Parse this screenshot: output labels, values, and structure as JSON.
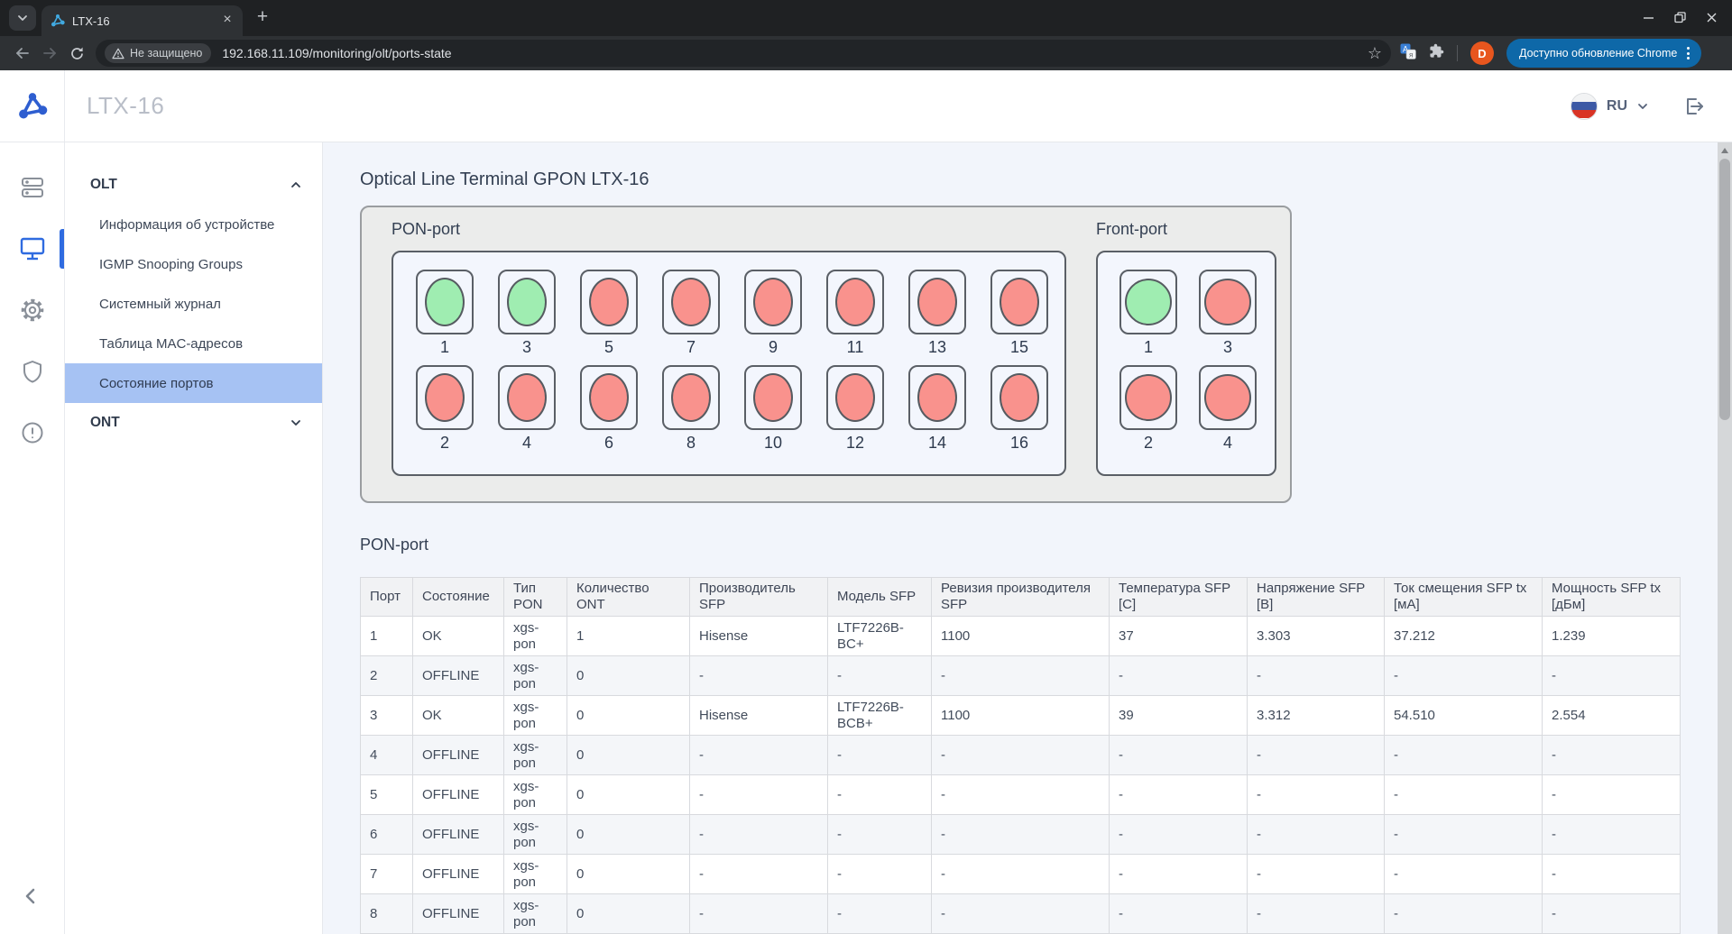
{
  "browser": {
    "tab_title": "LTX-16",
    "security_label": "Не защищено",
    "url": "192.168.11.109/monitoring/olt/ports-state",
    "profile_initial": "D",
    "update_button": "Доступно обновление Chrome"
  },
  "app_header": {
    "title": "LTX-16",
    "language": "RU"
  },
  "sidebar": {
    "items": [
      {
        "type": "group",
        "label": "OLT",
        "state": "expanded"
      },
      {
        "type": "item",
        "label": "Информация об устройстве"
      },
      {
        "type": "item",
        "label": "IGMP Snooping Groups"
      },
      {
        "type": "item",
        "label": "Системный журнал"
      },
      {
        "type": "item",
        "label": "Таблица MAC-адресов"
      },
      {
        "type": "item",
        "label": "Состояние портов",
        "selected": true
      },
      {
        "type": "group",
        "label": "ONT",
        "state": "collapsed"
      }
    ]
  },
  "main": {
    "title": "Optical Line Terminal GPON LTX-16",
    "ports_panel": {
      "pon_label": "PON-port",
      "front_label": "Front-port",
      "pon_rows": [
        [
          {
            "num": "1",
            "state": "on"
          },
          {
            "num": "3",
            "state": "on"
          },
          {
            "num": "5",
            "state": "off"
          },
          {
            "num": "7",
            "state": "off"
          },
          {
            "num": "9",
            "state": "off"
          },
          {
            "num": "11",
            "state": "off"
          },
          {
            "num": "13",
            "state": "off"
          },
          {
            "num": "15",
            "state": "off"
          }
        ],
        [
          {
            "num": "2",
            "state": "off"
          },
          {
            "num": "4",
            "state": "off"
          },
          {
            "num": "6",
            "state": "off"
          },
          {
            "num": "8",
            "state": "off"
          },
          {
            "num": "10",
            "state": "off"
          },
          {
            "num": "12",
            "state": "off"
          },
          {
            "num": "14",
            "state": "off"
          },
          {
            "num": "16",
            "state": "off"
          }
        ]
      ],
      "front_rows": [
        [
          {
            "num": "1",
            "state": "on"
          },
          {
            "num": "3",
            "state": "off"
          }
        ],
        [
          {
            "num": "2",
            "state": "off"
          },
          {
            "num": "4",
            "state": "off"
          }
        ]
      ]
    },
    "table": {
      "title": "PON-port",
      "columns": [
        "Порт",
        "Состояние",
        "Тип PON",
        "Количество ONT",
        "Производитель SFP",
        "Модель SFP",
        "Ревизия производителя SFP",
        "Температура SFP [C]",
        "Напряжение SFP [В]",
        "Ток смещения SFP tx [мА]",
        "Мощность SFP tx [дБм]"
      ],
      "rows": [
        [
          "1",
          "OK",
          "xgs-pon",
          "1",
          "Hisense",
          "LTF7226B-BC+",
          "1100",
          "37",
          "3.303",
          "37.212",
          "1.239"
        ],
        [
          "2",
          "OFFLINE",
          "xgs-pon",
          "0",
          "-",
          "-",
          "-",
          "-",
          "-",
          "-",
          "-"
        ],
        [
          "3",
          "OK",
          "xgs-pon",
          "0",
          "Hisense",
          "LTF7226B-BCB+",
          "1100",
          "39",
          "3.312",
          "54.510",
          "2.554"
        ],
        [
          "4",
          "OFFLINE",
          "xgs-pon",
          "0",
          "-",
          "-",
          "-",
          "-",
          "-",
          "-",
          "-"
        ],
        [
          "5",
          "OFFLINE",
          "xgs-pon",
          "0",
          "-",
          "-",
          "-",
          "-",
          "-",
          "-",
          "-"
        ],
        [
          "6",
          "OFFLINE",
          "xgs-pon",
          "0",
          "-",
          "-",
          "-",
          "-",
          "-",
          "-",
          "-"
        ],
        [
          "7",
          "OFFLINE",
          "xgs-pon",
          "0",
          "-",
          "-",
          "-",
          "-",
          "-",
          "-",
          "-"
        ],
        [
          "8",
          "OFFLINE",
          "xgs-pon",
          "0",
          "-",
          "-",
          "-",
          "-",
          "-",
          "-",
          "-"
        ]
      ]
    }
  },
  "colors": {
    "accent": "#2f6be0",
    "port_on": "#9fedb1",
    "port_off": "#f9928d",
    "selected_item": "#a6c2f3",
    "update_pill": "#0e68a8",
    "avatar": "#e8561e"
  }
}
